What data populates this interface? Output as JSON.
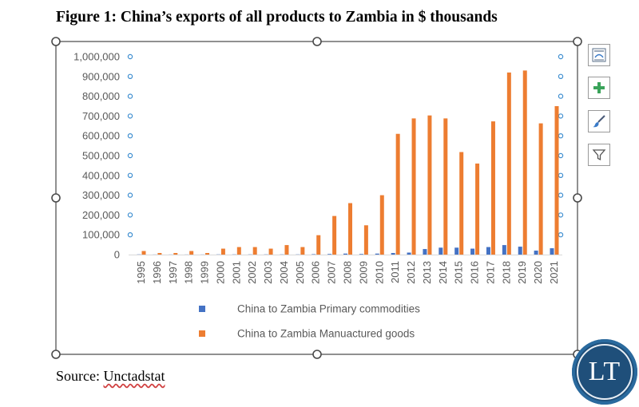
{
  "figure_title": "Figure 1: China’s exports of all products to Zambia in $ thousands",
  "source": {
    "prefix": "Source: ",
    "name": "Unctadstat"
  },
  "logo_text": "LT",
  "toolbar": {
    "icons": [
      "chart-elements-layout-icon",
      "add-chart-element-icon",
      "chart-styles-brush-icon",
      "chart-filter-icon"
    ]
  },
  "colors": {
    "primary_series": "#4472c4",
    "manufactured_series": "#ed7d31",
    "axis_text": "#595959",
    "gridline": "#d9d9d9",
    "selection": "#4a4a4a",
    "handle_dot": "#3e8ed0"
  },
  "chart_data": {
    "type": "bar",
    "title": "",
    "xlabel": "",
    "ylabel": "",
    "ylim": [
      0,
      1000000
    ],
    "yticks": [
      0,
      100000,
      200000,
      300000,
      400000,
      500000,
      600000,
      700000,
      800000,
      900000,
      1000000
    ],
    "ytick_labels": [
      "0",
      "100,000",
      "200,000",
      "300,000",
      "400,000",
      "500,000",
      "600,000",
      "700,000",
      "800,000",
      "900,000",
      "1,000,000"
    ],
    "categories": [
      "1995",
      "1996",
      "1997",
      "1998",
      "1999",
      "2000",
      "2001",
      "2002",
      "2003",
      "2004",
      "2005",
      "2006",
      "2007",
      "2008",
      "2009",
      "2010",
      "2011",
      "2012",
      "2013",
      "2014",
      "2015",
      "2016",
      "2017",
      "2018",
      "2019",
      "2020",
      "2021"
    ],
    "series": [
      {
        "name": "China to Zambia Primary commodities",
        "values": [
          1000,
          500,
          500,
          500,
          500,
          1000,
          1000,
          1000,
          1000,
          1000,
          1000,
          2000,
          3000,
          5000,
          3000,
          5000,
          8000,
          10000,
          28000,
          35000,
          35000,
          30000,
          38000,
          48000,
          40000,
          20000,
          32000
        ]
      },
      {
        "name": "China to Zambia Manuactured goods",
        "values": [
          18000,
          8000,
          8000,
          18000,
          8000,
          30000,
          38000,
          38000,
          30000,
          48000,
          38000,
          98000,
          195000,
          260000,
          148000,
          300000,
          610000,
          688000,
          703000,
          688000,
          518000,
          460000,
          673000,
          920000,
          930000,
          663000,
          750000
        ]
      }
    ],
    "legend_position": "bottom",
    "grid": false
  }
}
